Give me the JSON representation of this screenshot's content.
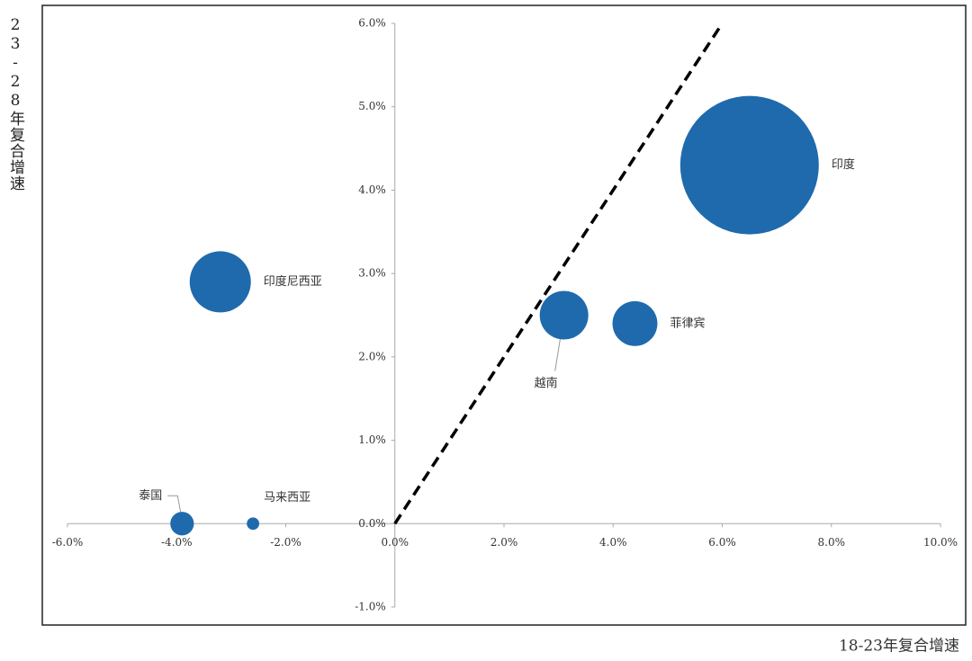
{
  "chart_data": {
    "type": "bubble",
    "y_axis_label": "23-28年复合增速",
    "x_axis_label": "18-23年复合增速",
    "labels": [
      "印度",
      "印度尼西亚",
      "越南",
      "菲律宾",
      "泰国",
      "马来西亚"
    ],
    "x": [
      6.5,
      -3.2,
      3.1,
      4.4,
      -3.9,
      -2.6
    ],
    "values": [
      4.3,
      2.9,
      2.5,
      2.4,
      0,
      0
    ],
    "sizes": [
      100,
      19.5,
      12.3,
      10.5,
      2.9,
      0.8
    ],
    "color": "#1f6aad",
    "reference_line": {
      "x": [
        0,
        6
      ],
      "y": [
        0,
        6
      ]
    },
    "xlim": [
      -6,
      10
    ],
    "ylim": [
      -1,
      6
    ],
    "xticks": [
      {
        "value": -6,
        "label": "-6.0%"
      },
      {
        "value": -4,
        "label": "-4.0%"
      },
      {
        "value": -2,
        "label": "-2.0%"
      },
      {
        "value": 0,
        "label": "0.0%"
      },
      {
        "value": 2,
        "label": "2.0%"
      },
      {
        "value": 4,
        "label": "4.0%"
      },
      {
        "value": 6,
        "label": "6.0%"
      },
      {
        "value": 8,
        "label": "8.0%"
      },
      {
        "value": 10,
        "label": "10.0%"
      }
    ],
    "yticks": [
      {
        "value": -1,
        "label": "-1.0%"
      },
      {
        "value": 0,
        "label": "0.0%"
      },
      {
        "value": 1,
        "label": "1.0%"
      },
      {
        "value": 2,
        "label": "2.0%"
      },
      {
        "value": 3,
        "label": "3.0%"
      },
      {
        "value": 4,
        "label": "4.0%"
      },
      {
        "value": 5,
        "label": "5.0%"
      },
      {
        "value": 6,
        "label": "6.0%"
      }
    ]
  }
}
